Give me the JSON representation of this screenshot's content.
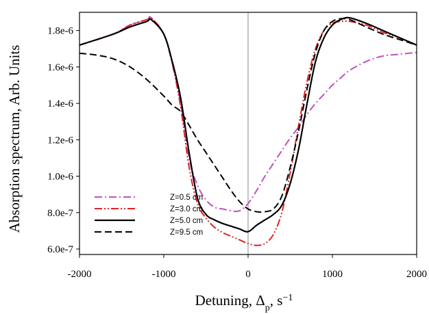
{
  "chart_data": {
    "type": "line",
    "title": "",
    "xlabel": {
      "main": "Detuning, Δ",
      "sub": "p",
      "tail": ", s",
      "sup": "−1"
    },
    "ylabel": "Absorption spectrum, Arb. Units",
    "xlim": [
      -2000,
      2000
    ],
    "ylim": [
      5.7e-07,
      1.9e-06
    ],
    "x_ticks": [
      -2000,
      -1000,
      0,
      1000,
      2000
    ],
    "x_tick_labels": [
      "-2000",
      "-1000",
      "0",
      "1000",
      "2000"
    ],
    "y_ticks": [
      6e-07,
      8e-07,
      1e-06,
      1.2e-06,
      1.4e-06,
      1.6e-06,
      1.8e-06
    ],
    "y_tick_labels": [
      "6.0e-7",
      "8.0e-7",
      "1.0e-6",
      "1.2e-6",
      "1.4e-6",
      "1.6e-6",
      "1.8e-6"
    ],
    "vertical_line_x": 0,
    "grid": false,
    "legend_position": "bottom-left",
    "series": [
      {
        "name": "Z=0.5 cm",
        "color": "#c050c0",
        "dash": "dash-dot",
        "x": [
          -2000,
          -1600,
          -1400,
          -1200,
          -1150,
          -1000,
          -900,
          -800,
          -700,
          -600,
          -500,
          -400,
          -300,
          -200,
          -100,
          0,
          100,
          200,
          300,
          400,
          500,
          600,
          700,
          800,
          900,
          1000,
          1100,
          1200,
          1400,
          1600,
          1800,
          2000
        ],
        "y": [
          1.72e-06,
          1.78e-06,
          1.83e-06,
          1.86e-06,
          1.87e-06,
          1.78e-06,
          1.62e-06,
          1.4e-06,
          1.1e-06,
          9.5e-07,
          8.7e-07,
          8.3e-07,
          8.2e-07,
          8.1e-07,
          8.1e-07,
          8.5e-07,
          9.2e-07,
          1e-06,
          1.07e-06,
          1.14e-06,
          1.21e-06,
          1.27e-06,
          1.34e-06,
          1.4e-06,
          1.45e-06,
          1.5e-06,
          1.54e-06,
          1.58e-06,
          1.63e-06,
          1.66e-06,
          1.67e-06,
          1.68e-06
        ]
      },
      {
        "name": "Z=3.0 cm",
        "color": "#e02020",
        "dash": "dash-dot-dot",
        "x": [
          -2000,
          -1600,
          -1400,
          -1200,
          -1150,
          -1000,
          -900,
          -800,
          -700,
          -600,
          -500,
          -400,
          -300,
          -200,
          -100,
          0,
          100,
          200,
          300,
          400,
          500,
          600,
          700,
          800,
          900,
          1000,
          1100,
          1200,
          1400,
          1600,
          1800,
          2000
        ],
        "y": [
          1.72e-06,
          1.78e-06,
          1.83e-06,
          1.86e-06,
          1.87e-06,
          1.78e-06,
          1.62e-06,
          1.38e-06,
          1.05e-06,
          8.5e-07,
          7.7e-07,
          7.2e-07,
          6.9e-07,
          6.7e-07,
          6.5e-07,
          6.3e-07,
          6.2e-07,
          6.3e-07,
          6.8e-07,
          8e-07,
          1.02e-06,
          1.28e-06,
          1.52e-06,
          1.7e-06,
          1.8e-06,
          1.84e-06,
          1.85e-06,
          1.85e-06,
          1.83e-06,
          1.79e-06,
          1.76e-06,
          1.72e-06
        ]
      },
      {
        "name": "Z=5.0 cm",
        "color": "#000000",
        "dash": "solid",
        "x": [
          -2000,
          -1600,
          -1400,
          -1200,
          -1150,
          -1000,
          -900,
          -800,
          -700,
          -600,
          -500,
          -400,
          -300,
          -200,
          -100,
          0,
          100,
          200,
          300,
          400,
          500,
          600,
          700,
          800,
          900,
          1000,
          1100,
          1200,
          1400,
          1600,
          1800,
          2000
        ],
        "y": [
          1.72e-06,
          1.78e-06,
          1.82e-06,
          1.85e-06,
          1.86e-06,
          1.78e-06,
          1.63e-06,
          1.43e-06,
          1.13e-06,
          8.8e-07,
          7.9e-07,
          7.6e-07,
          7.4e-07,
          7.25e-07,
          7.1e-07,
          6.95e-07,
          7.3e-07,
          7.6e-07,
          7.9e-07,
          8.4e-07,
          9.6e-07,
          1.15e-06,
          1.4e-06,
          1.63e-06,
          1.76e-06,
          1.83e-06,
          1.86e-06,
          1.87e-06,
          1.84e-06,
          1.8e-06,
          1.76e-06,
          1.72e-06
        ]
      },
      {
        "name": "Z=9.5 cm",
        "color": "#000000",
        "dash": "dashed",
        "x": [
          -2000,
          -1800,
          -1600,
          -1400,
          -1200,
          -1000,
          -900,
          -800,
          -700,
          -600,
          -500,
          -400,
          -300,
          -200,
          -100,
          0,
          100,
          200,
          300,
          400,
          500,
          600,
          700,
          800,
          900,
          1000,
          1100,
          1200,
          1400,
          1600,
          1800,
          2000
        ],
        "y": [
          1.675e-06,
          1.665e-06,
          1.645e-06,
          1.6e-06,
          1.53e-06,
          1.44e-06,
          1.39e-06,
          1.355e-06,
          1.28e-06,
          1.2e-06,
          1.13e-06,
          1.06e-06,
          9.9e-07,
          9.2e-07,
          8.6e-07,
          8.2e-07,
          8.05e-07,
          8.05e-07,
          8.2e-07,
          8.9e-07,
          1.05e-06,
          1.25e-06,
          1.48e-06,
          1.68e-06,
          1.8e-06,
          1.85e-06,
          1.865e-06,
          1.86e-06,
          1.82e-06,
          1.78e-06,
          1.75e-06,
          1.72e-06
        ]
      }
    ]
  }
}
